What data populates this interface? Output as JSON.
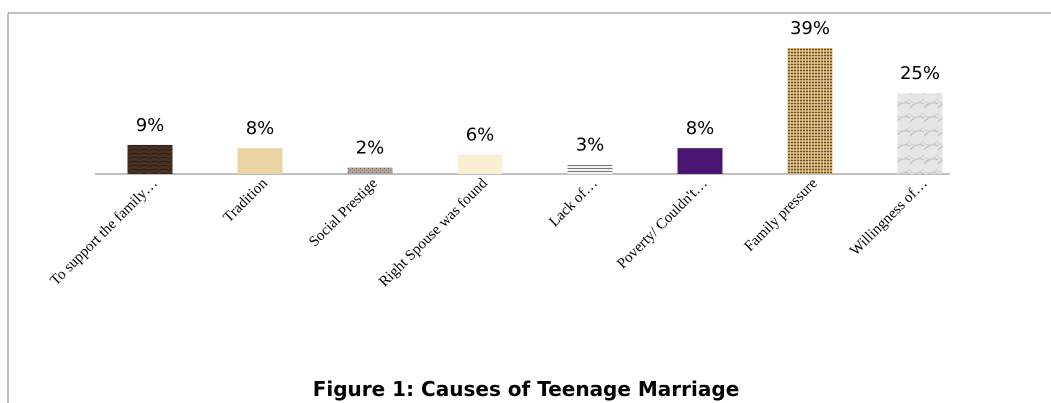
{
  "chart_data": {
    "type": "bar",
    "title": "Figure 1: Causes of Teenage Marriage",
    "xlabel": "",
    "ylabel": "",
    "categories": [
      "To support the family…",
      "Tradition",
      "Social Prestige",
      "Right Spouse was found",
      "Lack of…",
      "Poverty/ Couldn't…",
      "Family pressure",
      "Willingness of…"
    ],
    "values": [
      9,
      8,
      2,
      6,
      3,
      8,
      39,
      25
    ],
    "value_labels": [
      "9%",
      "8%",
      "2%",
      "6%",
      "3%",
      "8%",
      "39%",
      "25%"
    ],
    "ylim": [
      0,
      40
    ],
    "grid": false,
    "legend": "none",
    "bar_colors": [
      "#4a3224",
      "#ecd3a4",
      "#a8998c",
      "#fbeed3",
      "#9a9a9a",
      "#4a1672",
      "#b0894f",
      "#dcdcdc"
    ]
  }
}
